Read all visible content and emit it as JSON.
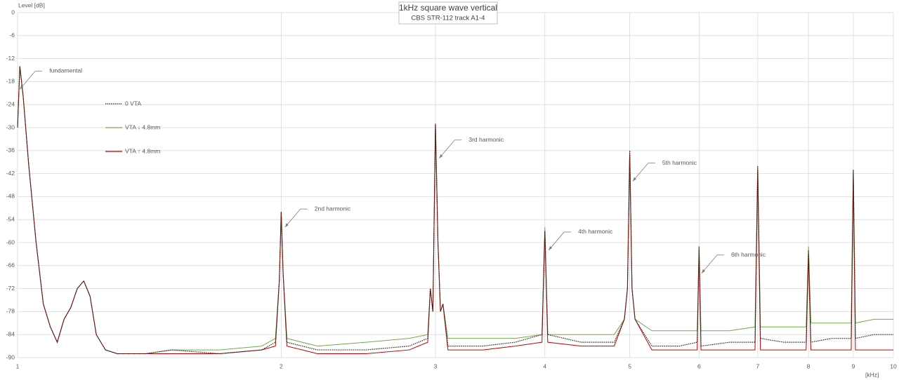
{
  "chart_data": {
    "type": "line",
    "title": "1kHz square wave vertical",
    "subtitle": "CBS STR-112 track A1-4",
    "y_label": "Level [dB]",
    "x_label": "[kHz]",
    "log_x": true,
    "grid": true,
    "legend": "upper left",
    "xlim": [
      1,
      10
    ],
    "xticks": [
      1,
      2,
      3,
      4,
      5,
      6,
      7,
      8,
      9,
      10
    ],
    "ylim": [
      -90,
      0
    ],
    "yticks": [
      -90,
      -84,
      -78,
      -72,
      -66,
      -60,
      -54,
      -48,
      -42,
      -36,
      -30,
      -24,
      -18,
      -12,
      -6,
      0
    ],
    "x": [
      1.0,
      1.006,
      1.015,
      1.03,
      1.05,
      1.07,
      1.09,
      1.11,
      1.13,
      1.15,
      1.17,
      1.19,
      1.21,
      1.23,
      1.26,
      1.3,
      1.4,
      1.5,
      1.7,
      1.9,
      1.97,
      1.99,
      2.0,
      2.01,
      2.03,
      2.2,
      2.5,
      2.8,
      2.94,
      2.96,
      2.98,
      3.0,
      3.02,
      3.04,
      3.06,
      3.1,
      3.4,
      3.7,
      3.97,
      4.0,
      4.03,
      4.4,
      4.8,
      4.93,
      4.97,
      5.0,
      5.03,
      5.07,
      5.3,
      5.7,
      5.97,
      6.0,
      6.03,
      6.5,
      6.95,
      7.0,
      7.05,
      7.5,
      7.95,
      8.0,
      8.05,
      8.5,
      8.95,
      9.0,
      9.05,
      9.5,
      10.0
    ],
    "series": [
      {
        "name": "0 VTA",
        "color": "#262626",
        "style": "dotted",
        "values": [
          -30,
          -14,
          -22,
          -40,
          -60,
          -76,
          -82,
          -86,
          -80,
          -77,
          -72,
          -70,
          -74,
          -84,
          -88,
          -89,
          -89,
          -88,
          -89,
          -88,
          -86,
          -70,
          -52,
          -68,
          -86,
          -88,
          -88,
          -87,
          -85,
          -72,
          -78,
          -29,
          -60,
          -78,
          -76,
          -87,
          -87,
          -86,
          -84,
          -57,
          -84,
          -86,
          -86,
          -80,
          -72,
          -36,
          -72,
          -80,
          -87,
          -87,
          -86,
          -61,
          -87,
          -86,
          -86,
          -40,
          -85,
          -86,
          -86,
          -62,
          -86,
          -85,
          -85,
          -41,
          -85,
          -84,
          -84
        ]
      },
      {
        "name": "VTA ↓ 4.8mm",
        "color": "#70ad47",
        "style": "solid",
        "values": [
          -30,
          -14,
          -22,
          -40,
          -60,
          -76,
          -82,
          -86,
          -80,
          -77,
          -72,
          -70,
          -74,
          -84,
          -88,
          -89,
          -89,
          -88,
          -88,
          -87,
          -85,
          -70,
          -52,
          -68,
          -85,
          -87,
          -86,
          -85,
          -84,
          -72,
          -78,
          -29,
          -60,
          -78,
          -76,
          -85,
          -85,
          -85,
          -84,
          -56,
          -84,
          -84,
          -84,
          -80,
          -72,
          -36,
          -72,
          -80,
          -83,
          -83,
          -83,
          -61,
          -83,
          -83,
          -82,
          -40,
          -82,
          -82,
          -82,
          -61,
          -81,
          -81,
          -81,
          -41,
          -81,
          -80,
          -80
        ]
      },
      {
        "name": "VTA ↑ 4.8mm",
        "color": "#c00000",
        "style": "solid",
        "values": [
          -30,
          -14,
          -22,
          -40,
          -60,
          -76,
          -82,
          -86,
          -80,
          -77,
          -72,
          -70,
          -74,
          -84,
          -88,
          -89,
          -89,
          -89,
          -89,
          -88,
          -87,
          -70,
          -52,
          -68,
          -87,
          -89,
          -89,
          -88,
          -86,
          -72,
          -78,
          -29,
          -60,
          -78,
          -76,
          -88,
          -88,
          -87,
          -86,
          -57,
          -86,
          -87,
          -87,
          -80,
          -72,
          -37,
          -72,
          -80,
          -88,
          -88,
          -88,
          -62,
          -88,
          -88,
          -88,
          -41,
          -88,
          -88,
          -88,
          -63,
          -88,
          -88,
          -88,
          -42,
          -88,
          -88,
          -88
        ]
      }
    ],
    "annotations": [
      {
        "text": "fundamental",
        "x": 1.006,
        "y": -20
      },
      {
        "text": "2nd harmonic",
        "x": 2.02,
        "y": -56
      },
      {
        "text": "3rd harmonic",
        "x": 3.03,
        "y": -38
      },
      {
        "text": "4th harmonic",
        "x": 4.04,
        "y": -62
      },
      {
        "text": "5th harmonic",
        "x": 5.04,
        "y": -44
      },
      {
        "text": "6th harmonic",
        "x": 6.04,
        "y": -68
      }
    ]
  }
}
